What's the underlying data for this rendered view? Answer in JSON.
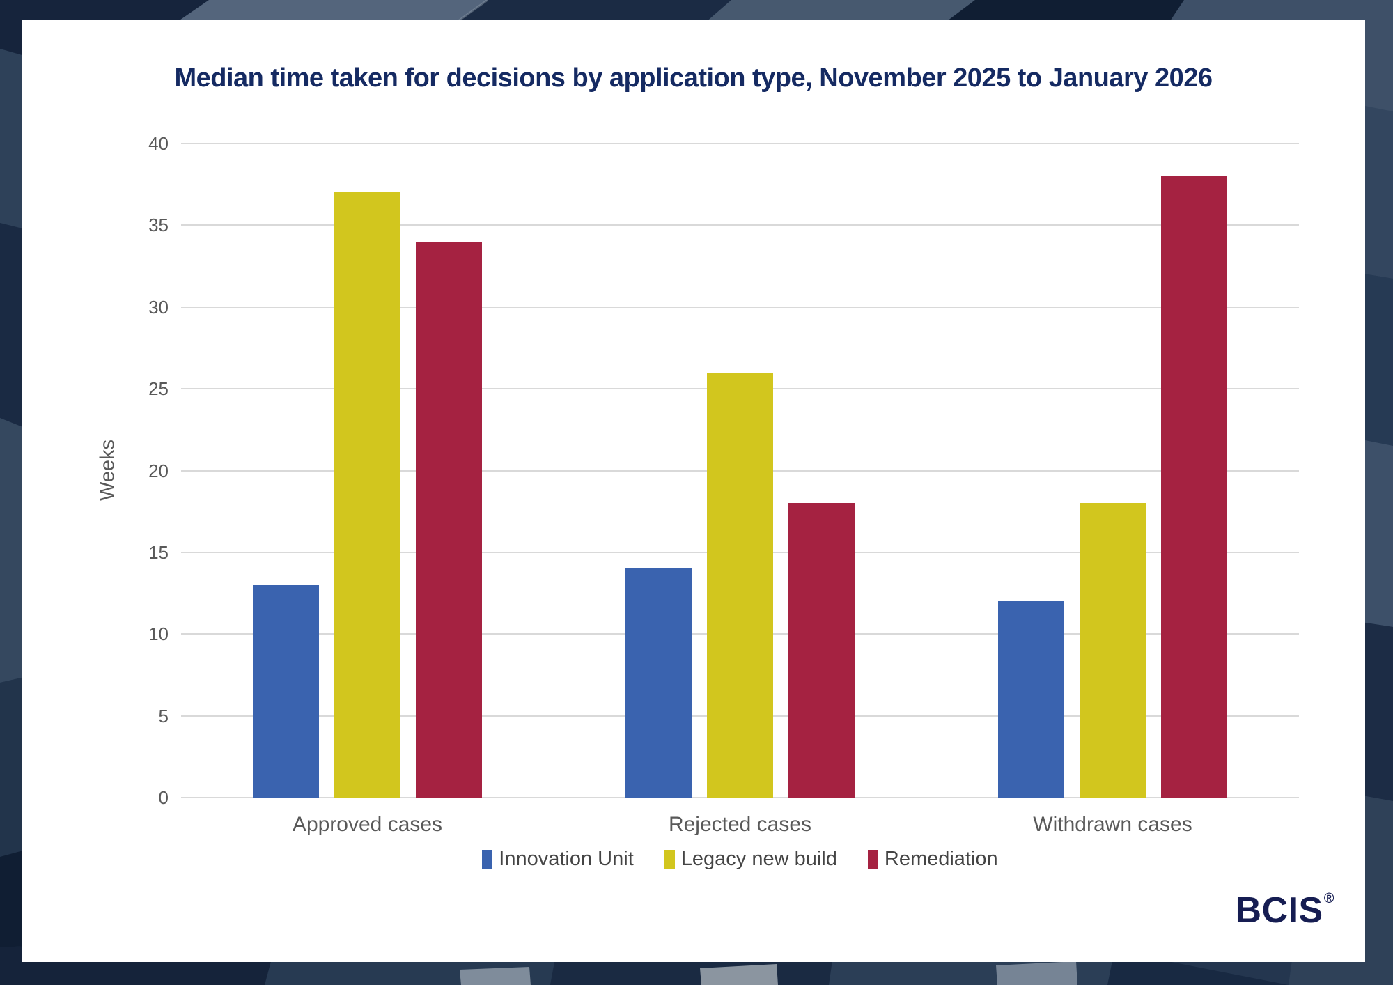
{
  "chart_data": {
    "type": "bar",
    "title": "Median time taken for decisions by application type, November 2025 to January 2026",
    "categories": [
      "Approved cases",
      "Rejected cases",
      "Withdrawn cases"
    ],
    "series": [
      {
        "name": "Innovation Unit",
        "color": "#3A63AF",
        "values": [
          13,
          14,
          12
        ]
      },
      {
        "name": "Legacy new build",
        "color": "#D2C61E",
        "values": [
          37,
          26,
          18
        ]
      },
      {
        "name": "Remediation",
        "color": "#A52241",
        "values": [
          34,
          18,
          38
        ]
      }
    ],
    "xlabel": "",
    "ylabel": "Weeks",
    "ylim": [
      0,
      40
    ],
    "ytick_step": 5,
    "grid": true,
    "legend_position": "bottom"
  },
  "branding": {
    "logo_text": "BCIS",
    "registered_mark": "®"
  },
  "style": {
    "title_color": "#152A62",
    "axis_text_color": "#595959",
    "legend_text_color": "#444444",
    "gridline_color": "#D9D9D9",
    "card_background": "#FFFFFF",
    "page_background": "#24364F",
    "logo_color": "#161D52"
  }
}
